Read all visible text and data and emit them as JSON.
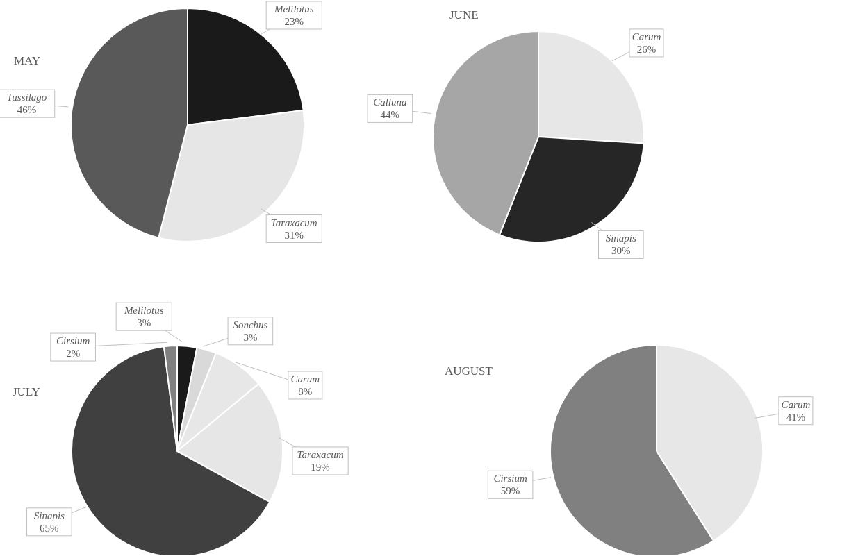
{
  "chart_data": [
    {
      "type": "pie",
      "title": "MAY",
      "categories": [
        "Melilotus",
        "Taraxacum",
        "Tussilago"
      ],
      "values": [
        23,
        31,
        46
      ],
      "value_labels": [
        "23%",
        "31%",
        "46%"
      ],
      "colors": [
        "#1a1a1a",
        "#e6e6e6",
        "#595959"
      ],
      "legend": false
    },
    {
      "type": "pie",
      "title": "JUNE",
      "categories": [
        "Carum",
        "Sinapis",
        "Calluna"
      ],
      "values": [
        26,
        30,
        44
      ],
      "value_labels": [
        "26%",
        "30%",
        "44%"
      ],
      "colors": [
        "#e7e7e7",
        "#262626",
        "#a6a6a6"
      ],
      "legend": false
    },
    {
      "type": "pie",
      "title": "JULY",
      "categories": [
        "Melilotus",
        "Sonchus",
        "Carum",
        "Taraxacum",
        "Sinapis",
        "Cirsium"
      ],
      "values": [
        3,
        3,
        8,
        19,
        65,
        2
      ],
      "value_labels": [
        "3%",
        "3%",
        "8%",
        "19%",
        "65%",
        "2%"
      ],
      "colors": [
        "#1a1a1a",
        "#d9d9d9",
        "#e7e7e7",
        "#e6e6e6",
        "#404040",
        "#808080"
      ],
      "legend": false
    },
    {
      "type": "pie",
      "title": "AUGUST",
      "categories": [
        "Carum",
        "Cirsium"
      ],
      "values": [
        41,
        59
      ],
      "value_labels": [
        "41%",
        "59%"
      ],
      "colors": [
        "#e7e7e7",
        "#808080"
      ],
      "legend": false
    }
  ]
}
